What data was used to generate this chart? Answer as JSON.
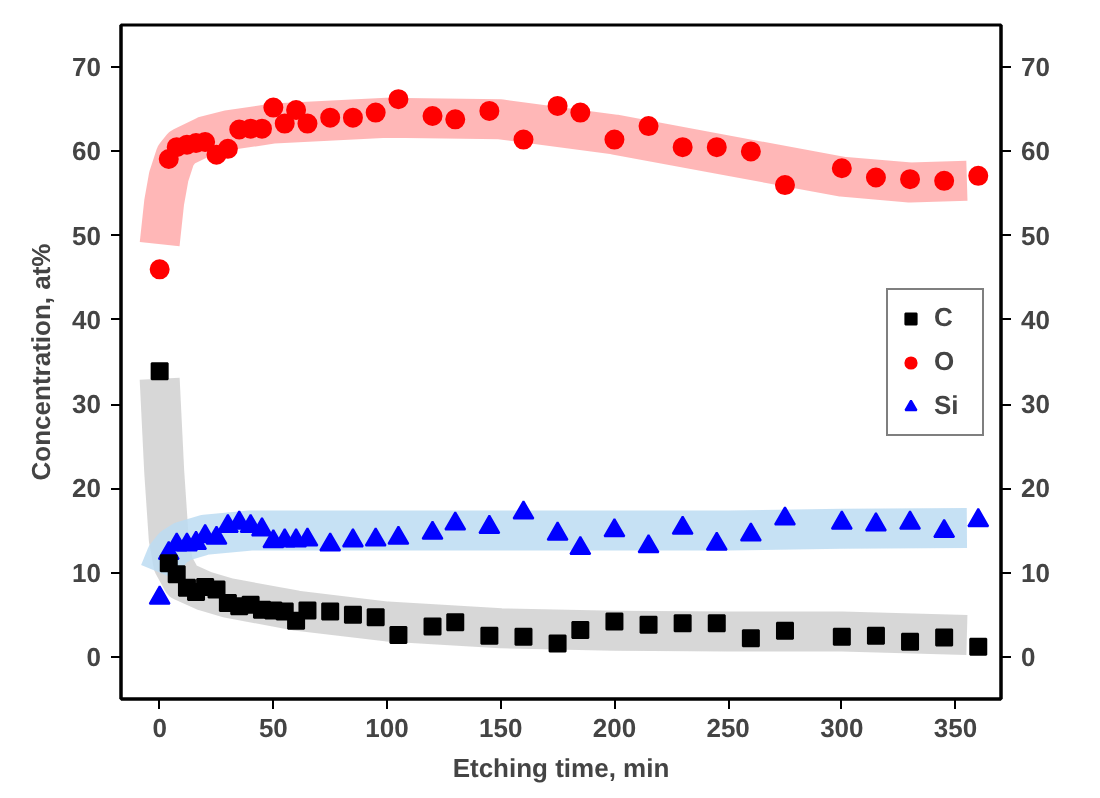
{
  "chart_data": {
    "type": "scatter",
    "xlabel": "Etching time, min",
    "ylabel": "Concentration, at%",
    "x": [
      0,
      4,
      7.5,
      12,
      16,
      20,
      25,
      30,
      35,
      40,
      45,
      50,
      55,
      60,
      65,
      75,
      85,
      95,
      105,
      120,
      130,
      145,
      160,
      175,
      185,
      200,
      215,
      230,
      245,
      260,
      275,
      300,
      315,
      330,
      345,
      360
    ],
    "xlim": [
      -17,
      370
    ],
    "xticks": [
      0,
      50,
      100,
      150,
      200,
      250,
      300,
      350
    ],
    "ylim": [
      -5,
      75
    ],
    "yticks": [
      0,
      10,
      20,
      30,
      40,
      50,
      60,
      70
    ],
    "y2lim": [
      -5,
      75
    ],
    "y2ticks": [
      0,
      10,
      20,
      30,
      40,
      50,
      60,
      70
    ],
    "grid": false,
    "legend": "right",
    "series": [
      {
        "type": "line",
        "color": "#ffaaaa",
        "x": [
          0,
          2,
          4,
          7,
          10,
          20,
          30,
          50,
          100,
          150,
          200,
          250,
          300,
          330,
          355
        ],
        "values": [
          49,
          54,
          57,
          59.5,
          60.5,
          61.8,
          62.5,
          63.3,
          64,
          63.8,
          62,
          59.5,
          57,
          56.3,
          56.5
        ]
      },
      {
        "type": "line",
        "color": "#d0d0d0",
        "x": [
          0,
          2,
          4,
          6,
          10,
          20,
          30,
          60,
          100,
          150,
          200,
          250,
          300,
          355
        ],
        "values": [
          33,
          22,
          14,
          11,
          9,
          7.8,
          7,
          5.5,
          4.2,
          3.4,
          3.1,
          3,
          3,
          2.6
        ]
      },
      {
        "type": "line",
        "color": "#bcdcf2",
        "x": [
          0,
          3,
          6,
          10,
          20,
          40,
          60,
          100,
          150,
          200,
          250,
          300,
          355
        ],
        "values": [
          10,
          12,
          13,
          13.7,
          14.5,
          15,
          15,
          15,
          15,
          15,
          15,
          15.2,
          15.3
        ]
      },
      {
        "name": "C",
        "color": "#000000",
        "marker": "square",
        "values": [
          33.9,
          11.1,
          9.8,
          8.2,
          7.7,
          8.3,
          8.0,
          6.4,
          6.0,
          6.2,
          5.6,
          5.5,
          5.4,
          4.3,
          5.5,
          5.4,
          5.0,
          4.7,
          2.6,
          3.6,
          4.1,
          2.5,
          2.4,
          1.6,
          3.2,
          4.2,
          3.8,
          4.0,
          4.0,
          2.2,
          3.1,
          2.4,
          2.5,
          1.8,
          2.3,
          1.2
        ]
      },
      {
        "name": "O",
        "color": "#ff0000",
        "marker": "circle",
        "values": [
          46.0,
          59.1,
          60.5,
          60.8,
          61.0,
          61.1,
          59.6,
          60.3,
          62.6,
          62.7,
          62.7,
          65.2,
          63.3,
          64.9,
          63.3,
          64.0,
          64.0,
          64.6,
          66.2,
          64.2,
          63.8,
          64.8,
          61.4,
          65.4,
          64.6,
          61.4,
          63.0,
          60.5,
          60.5,
          60.0,
          56.0,
          58.0,
          56.9,
          56.7,
          56.5,
          57.1
        ]
      },
      {
        "name": "Si",
        "color": "#0000ff",
        "marker": "triangle",
        "values": [
          7.0,
          12.3,
          13.3,
          13.3,
          13.5,
          14.3,
          14.1,
          15.5,
          15.9,
          15.5,
          15.1,
          13.7,
          13.8,
          13.8,
          13.9,
          13.3,
          13.8,
          13.9,
          14.1,
          14.7,
          15.8,
          15.4,
          17.1,
          14.6,
          12.9,
          15.0,
          13.1,
          15.3,
          13.4,
          14.5,
          16.4,
          15.9,
          15.7,
          15.9,
          14.9,
          16.2
        ]
      }
    ]
  }
}
